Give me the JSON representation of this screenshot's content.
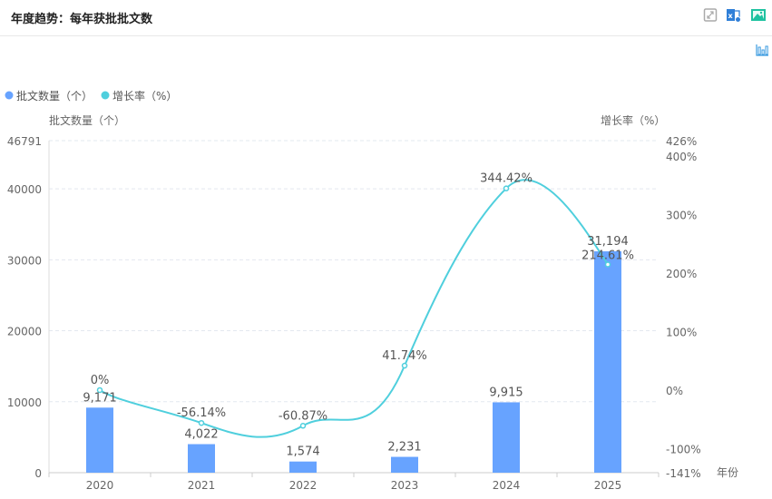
{
  "header": {
    "title": "年度趋势：每年获批批文数"
  },
  "toolbar": {
    "icons": [
      "fullscreen-icon",
      "export-excel-icon",
      "save-image-icon",
      "chart-type-icon"
    ]
  },
  "colors": {
    "bar": "#67a3ff",
    "line": "#4fcfdd",
    "grid": "#e3e8ef",
    "axis_text": "#666666"
  },
  "chart_data": {
    "type": "bar+line",
    "title": "年度趋势：每年获批批文数",
    "categories": [
      "2020",
      "2021",
      "2022",
      "2023",
      "2024",
      "2025"
    ],
    "xlabel": "年份",
    "series": [
      {
        "name": "批文数量（个）",
        "type": "bar",
        "axis": "left",
        "values": [
          9171,
          4022,
          1574,
          2231,
          9915,
          31194
        ],
        "labels": [
          "9,171",
          "4,022",
          "1,574",
          "2,231",
          "9,915",
          "31,194"
        ]
      },
      {
        "name": "增长率（%）",
        "type": "line",
        "axis": "right",
        "values": [
          0,
          -56.14,
          -60.87,
          41.74,
          344.42,
          214.61
        ],
        "labels": [
          "0%",
          "-56.14%",
          "-60.87%",
          "41.74%",
          "344.42%",
          "214.61%"
        ]
      }
    ],
    "left_axis": {
      "label": "批文数量（个）",
      "range": [
        0,
        46791
      ],
      "ticks": [
        0,
        10000,
        20000,
        30000,
        40000,
        46791
      ],
      "tick_labels": [
        "0",
        "10000",
        "20000",
        "30000",
        "40000",
        "46791"
      ]
    },
    "right_axis": {
      "label": "增长率（%）",
      "range": [
        -141,
        426
      ],
      "ticks": [
        -141,
        -100,
        0,
        100,
        200,
        300,
        400,
        426
      ],
      "tick_labels": [
        "-141%",
        "-100%",
        "0%",
        "100%",
        "200%",
        "300%",
        "400%",
        "426%"
      ]
    },
    "legend": {
      "position": "top-left",
      "items": [
        "批文数量（个）",
        "增长率（%）"
      ]
    },
    "grid": true
  }
}
